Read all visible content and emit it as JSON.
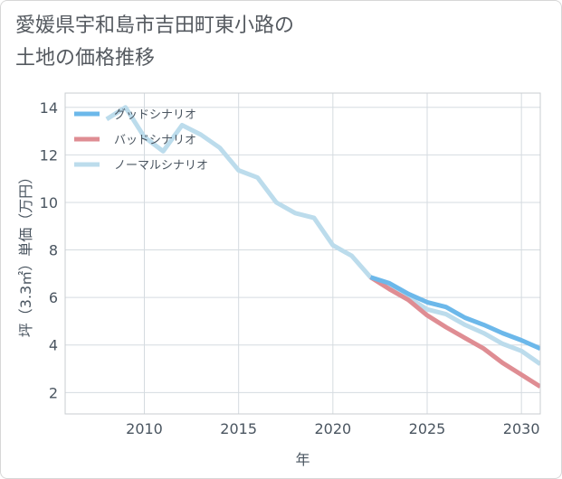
{
  "chart_data": {
    "type": "line",
    "title": "愛媛県宇和島市吉田町東小路の\n土地の価格推移",
    "xlabel": "年",
    "ylabel": "坪（3.3㎡）単価（万円）",
    "xlim": [
      2005.8,
      2031
    ],
    "ylim": [
      1.1,
      14.6
    ],
    "x_ticks": [
      "2010",
      "2015",
      "2020",
      "2025",
      "2030"
    ],
    "y_ticks": [
      "2",
      "4",
      "6",
      "8",
      "10",
      "12",
      "14"
    ],
    "legend_position": "top-left",
    "grid": true,
    "series": [
      {
        "name": "グッドシナリオ",
        "color": "#6cb8ea",
        "points": [
          [
            2022,
            6.85
          ],
          [
            2023,
            6.6
          ],
          [
            2024,
            6.15
          ],
          [
            2025,
            5.8
          ],
          [
            2026,
            5.6
          ],
          [
            2027,
            5.15
          ],
          [
            2028,
            4.85
          ],
          [
            2029,
            4.5
          ],
          [
            2030,
            4.2
          ],
          [
            2031,
            3.85
          ]
        ]
      },
      {
        "name": "バッドシナリオ",
        "color": "#df8d93",
        "points": [
          [
            2022,
            6.85
          ],
          [
            2023,
            6.35
          ],
          [
            2024,
            5.9
          ],
          [
            2025,
            5.25
          ],
          [
            2026,
            4.75
          ],
          [
            2027,
            4.3
          ],
          [
            2028,
            3.85
          ],
          [
            2029,
            3.25
          ],
          [
            2030,
            2.75
          ],
          [
            2031,
            2.25
          ]
        ]
      },
      {
        "name": "ノーマルシナリオ",
        "color": "#bcdcec",
        "points": [
          [
            2008,
            13.5
          ],
          [
            2009,
            14.0
          ],
          [
            2010,
            12.75
          ],
          [
            2011,
            12.15
          ],
          [
            2012,
            13.25
          ],
          [
            2013,
            12.85
          ],
          [
            2014,
            12.3
          ],
          [
            2015,
            11.35
          ],
          [
            2016,
            11.05
          ],
          [
            2017,
            10.0
          ],
          [
            2018,
            9.55
          ],
          [
            2019,
            9.35
          ],
          [
            2020,
            8.2
          ],
          [
            2021,
            7.75
          ],
          [
            2022,
            6.85
          ],
          [
            2023,
            6.45
          ],
          [
            2024,
            6.0
          ],
          [
            2025,
            5.5
          ],
          [
            2026,
            5.3
          ],
          [
            2027,
            4.85
          ],
          [
            2028,
            4.5
          ],
          [
            2029,
            4.05
          ],
          [
            2030,
            3.75
          ],
          [
            2031,
            3.2
          ]
        ]
      }
    ]
  }
}
